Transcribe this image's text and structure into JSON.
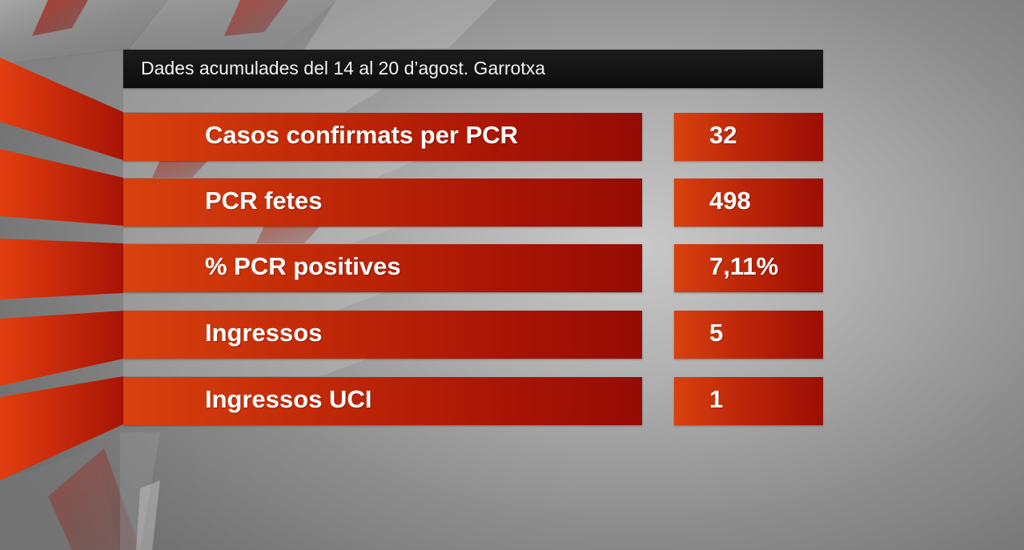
{
  "header": {
    "title": "Dades acumulades del 14 al 20 d’agost. Garrotxa"
  },
  "rows": [
    {
      "label": "Casos confirmats per PCR",
      "value": "32"
    },
    {
      "label": "PCR fetes",
      "value": "498"
    },
    {
      "label": "% PCR positives",
      "value": "7,11%"
    },
    {
      "label": "Ingressos",
      "value": "5"
    },
    {
      "label": "Ingressos UCI",
      "value": "1"
    }
  ],
  "colors": {
    "bar_light": "#d9410f",
    "bar_dark": "#950b04",
    "title_bg": "#111111",
    "background": "#b0b0b0"
  }
}
